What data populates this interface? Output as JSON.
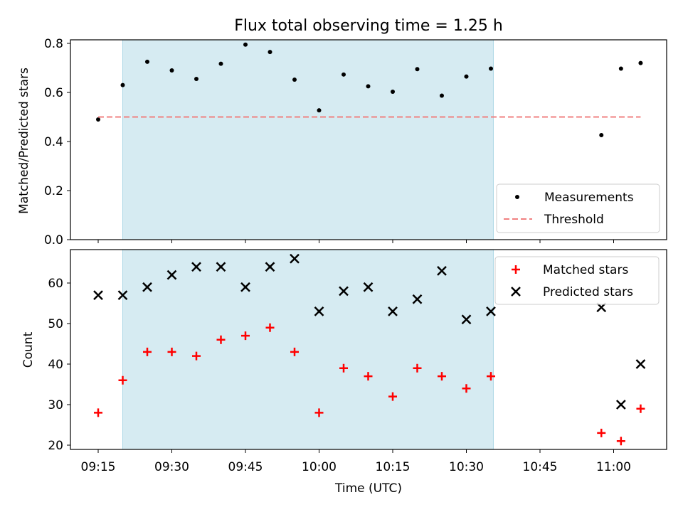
{
  "chart_data": [
    {
      "type": "scatter",
      "title": "Flux total observing time = 1.25 h",
      "xlabel": "",
      "ylabel": "Matched/Predicted stars",
      "ylim": [
        0,
        0.8
      ],
      "yticks": [
        "0.0",
        "0.2",
        "0.4",
        "0.6",
        "0.8"
      ],
      "shaded_interval_minutes": [
        20,
        95.5
      ],
      "series": [
        {
          "name": "Measurements",
          "marker": "dot",
          "color": "#000000",
          "x_minutes": [
            15,
            20,
            25,
            30,
            35,
            40,
            45,
            50,
            55,
            60,
            65,
            70,
            75,
            80,
            85,
            90,
            95,
            117.5,
            121.5,
            125.5
          ],
          "values": [
            0.49,
            0.63,
            0.725,
            0.69,
            0.655,
            0.717,
            0.795,
            0.765,
            0.652,
            0.527,
            0.673,
            0.625,
            0.603,
            0.695,
            0.587,
            0.665,
            0.697,
            0.426,
            0.697,
            0.72
          ]
        },
        {
          "name": "Threshold",
          "marker": "dashed-line",
          "color": "#f08080",
          "x_minutes": [
            15,
            125.5
          ],
          "values": [
            0.5,
            0.5
          ]
        }
      ],
      "legend": [
        "Measurements",
        "Threshold"
      ],
      "legend_position": "bottom-right"
    },
    {
      "type": "scatter",
      "title": "",
      "xlabel": "Time (UTC)",
      "ylabel": "Count",
      "ylim": [
        19,
        68
      ],
      "yticks": [
        "20",
        "30",
        "40",
        "50",
        "60"
      ],
      "shaded_interval_minutes": [
        20,
        95.5
      ],
      "xticks": [
        "09:15",
        "09:30",
        "09:45",
        "10:00",
        "10:15",
        "10:30",
        "10:45",
        "11:00"
      ],
      "series": [
        {
          "name": "Matched stars",
          "marker": "plus",
          "color": "#ff0000",
          "x_minutes": [
            15,
            20,
            25,
            30,
            35,
            40,
            45,
            50,
            55,
            60,
            65,
            70,
            75,
            80,
            85,
            90,
            95,
            117.5,
            121.5,
            125.5
          ],
          "values": [
            28,
            36,
            43,
            43,
            42,
            46,
            47,
            49,
            43,
            28,
            39,
            37,
            32,
            39,
            37,
            34,
            37,
            23,
            21,
            29
          ]
        },
        {
          "name": "Predicted stars",
          "marker": "x",
          "color": "#000000",
          "x_minutes": [
            15,
            20,
            25,
            30,
            35,
            40,
            45,
            50,
            55,
            60,
            65,
            70,
            75,
            80,
            85,
            90,
            95,
            117.5,
            121.5,
            125.5
          ],
          "values": [
            57,
            57,
            59,
            62,
            64,
            64,
            59,
            64,
            66,
            53,
            58,
            59,
            53,
            56,
            63,
            51,
            53,
            54,
            30,
            40
          ]
        }
      ],
      "legend": [
        "Matched stars",
        "Predicted stars"
      ],
      "legend_position": "top-right"
    }
  ]
}
